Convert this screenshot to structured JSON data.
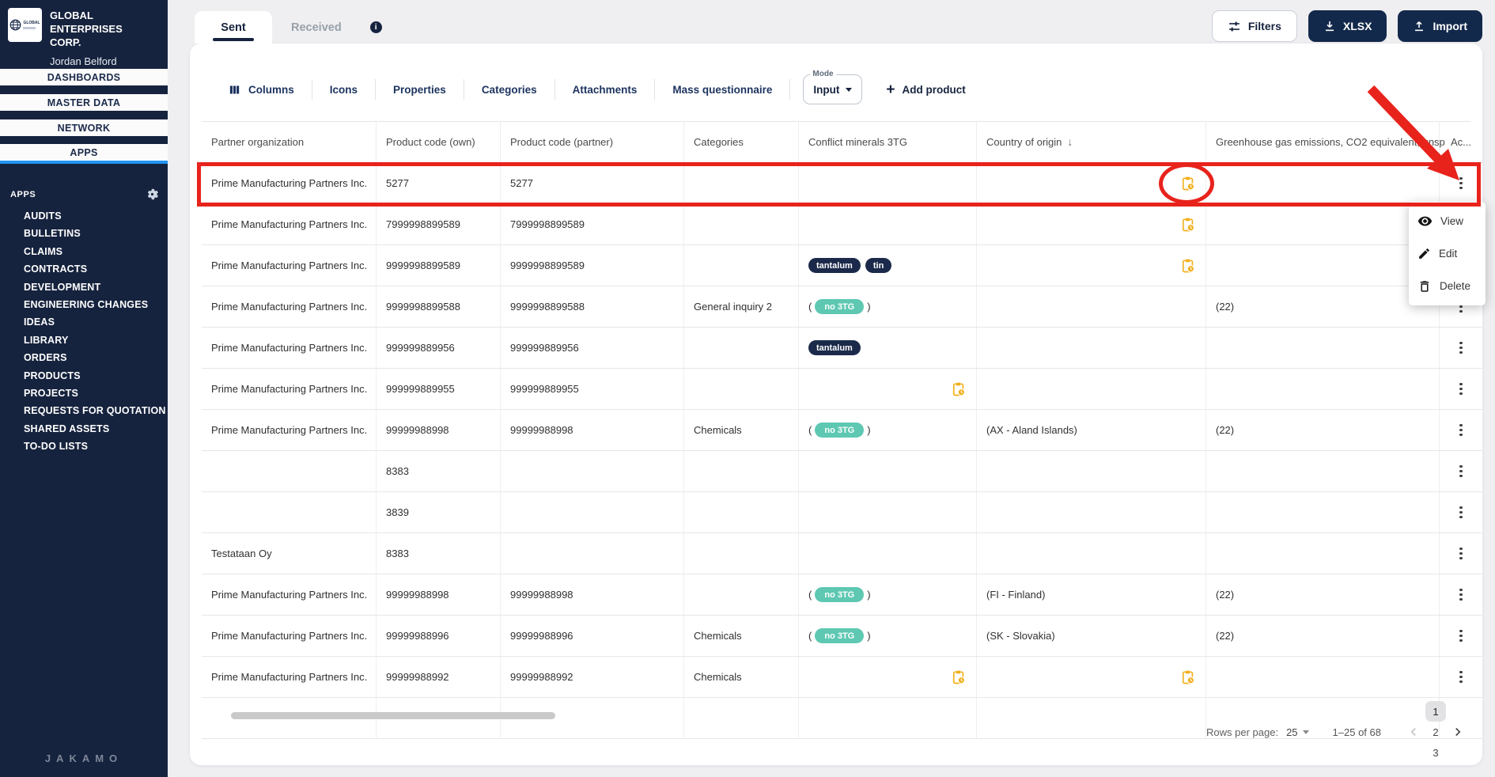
{
  "colors": {
    "sidebar_navy": "#16233e",
    "button_navy": "#13294b",
    "badge_navy": "#1b2a4a",
    "badge_teal": "#5ec8b2",
    "pending_amber": "#f2b01e",
    "annotation_red": "#e8231c",
    "active_tab_underline": "#2196f3"
  },
  "sidebar": {
    "logo_text": "GLOBAL",
    "company_line1": "GLOBAL ENTERPRISES",
    "company_line2": "CORP.",
    "user": "Jordan Belford",
    "nav_items": [
      {
        "label": "DASHBOARDS",
        "active": false
      },
      {
        "label": "MASTER DATA",
        "active": false
      },
      {
        "label": "NETWORK",
        "active": false
      },
      {
        "label": "APPS",
        "active": true
      }
    ],
    "apps_header": "APPS",
    "apps": [
      "AUDITS",
      "BULLETINS",
      "CLAIMS",
      "CONTRACTS",
      "DEVELOPMENT",
      "ENGINEERING CHANGES",
      "IDEAS",
      "LIBRARY",
      "ORDERS",
      "PRODUCTS",
      "PROJECTS",
      "REQUESTS FOR QUOTATION",
      "SHARED ASSETS",
      "TO-DO LISTS"
    ],
    "brand": "JAKAMO"
  },
  "tabs": {
    "sent": "Sent",
    "received": "Received"
  },
  "top_actions": {
    "filters": "Filters",
    "xlsx": "XLSX",
    "import": "Import"
  },
  "toolbar": {
    "items": [
      {
        "label": "Columns",
        "icon": "columns-icon"
      },
      {
        "label": "Icons"
      },
      {
        "label": "Properties"
      },
      {
        "label": "Categories"
      },
      {
        "label": "Attachments"
      },
      {
        "label": "Mass questionnaire"
      }
    ],
    "mode_label": "Mode",
    "mode_value": "Input",
    "add_product": "Add product"
  },
  "table": {
    "headers": [
      {
        "label": "Partner organization"
      },
      {
        "label": "Product code (own)"
      },
      {
        "label": "Product code (partner)"
      },
      {
        "label": "Categories"
      },
      {
        "label": "Conflict minerals 3TG"
      },
      {
        "label": "Country of origin",
        "sort": "desc"
      },
      {
        "label": "Greenhouse gas emissions, CO2 equivalent, unsp"
      },
      {
        "label": "Ac..."
      }
    ],
    "rows": [
      {
        "org": "Prime Manufacturing Partners Inc.",
        "own": "5277",
        "partner": "5277",
        "cat": "",
        "minerals": {
          "type": "none"
        },
        "country": "",
        "country_icon": true,
        "ghg": ""
      },
      {
        "org": "Prime Manufacturing Partners Inc.",
        "own": "7999998899589",
        "partner": "7999998899589",
        "cat": "",
        "minerals": {
          "type": "none"
        },
        "country": "",
        "country_icon": true,
        "ghg": ""
      },
      {
        "org": "Prime Manufacturing Partners Inc.",
        "own": "9999998899589",
        "partner": "9999998899589",
        "cat": "",
        "minerals": {
          "type": "badges",
          "badges": [
            "tantalum",
            "tin"
          ]
        },
        "country": "",
        "country_icon": true,
        "ghg": ""
      },
      {
        "org": "Prime Manufacturing Partners Inc.",
        "own": "9999998899588",
        "partner": "9999998899588",
        "cat": "General inquiry 2",
        "minerals": {
          "type": "no3tg",
          "label": "no 3TG"
        },
        "country": "",
        "country_icon": false,
        "ghg": "(22)"
      },
      {
        "org": "Prime Manufacturing Partners Inc.",
        "own": "999999889956",
        "partner": "999999889956",
        "cat": "",
        "minerals": {
          "type": "badges",
          "badges": [
            "tantalum"
          ]
        },
        "country": "",
        "country_icon": false,
        "ghg": ""
      },
      {
        "org": "Prime Manufacturing Partners Inc.",
        "own": "999999889955",
        "partner": "999999889955",
        "cat": "",
        "minerals": {
          "type": "icon"
        },
        "country": "",
        "country_icon": false,
        "ghg": ""
      },
      {
        "org": "Prime Manufacturing Partners Inc.",
        "own": "99999988998",
        "partner": "99999988998",
        "cat": "Chemicals",
        "minerals": {
          "type": "no3tg",
          "label": "no 3TG"
        },
        "country": "(AX - Aland Islands)",
        "country_icon": false,
        "ghg": "(22)"
      },
      {
        "org": "",
        "own": "8383",
        "partner": "",
        "cat": "",
        "minerals": {
          "type": "none"
        },
        "country": "",
        "country_icon": false,
        "ghg": ""
      },
      {
        "org": "",
        "own": "3839",
        "partner": "",
        "cat": "",
        "minerals": {
          "type": "none"
        },
        "country": "",
        "country_icon": false,
        "ghg": ""
      },
      {
        "org": "Testataan Oy",
        "own": "8383",
        "partner": "",
        "cat": "",
        "minerals": {
          "type": "none"
        },
        "country": "",
        "country_icon": false,
        "ghg": ""
      },
      {
        "org": "Prime Manufacturing Partners Inc.",
        "own": "99999988998",
        "partner": "99999988998",
        "cat": "",
        "minerals": {
          "type": "no3tg",
          "label": "no 3TG"
        },
        "country": "(FI - Finland)",
        "country_icon": false,
        "ghg": "(22)"
      },
      {
        "org": "Prime Manufacturing Partners Inc.",
        "own": "99999988996",
        "partner": "99999988996",
        "cat": "Chemicals",
        "minerals": {
          "type": "no3tg",
          "label": "no 3TG"
        },
        "country": "(SK - Slovakia)",
        "country_icon": false,
        "ghg": "(22)"
      },
      {
        "org": "Prime Manufacturing Partners Inc.",
        "own": "99999988992",
        "partner": "99999988992",
        "cat": "Chemicals",
        "minerals": {
          "type": "icon"
        },
        "country": "",
        "country_icon": true,
        "ghg": ""
      }
    ]
  },
  "context_menu": {
    "items": [
      {
        "label": "View",
        "icon": "eye-icon"
      },
      {
        "label": "Edit",
        "icon": "pencil-icon"
      },
      {
        "label": "Delete",
        "icon": "trash-icon"
      }
    ]
  },
  "pagination": {
    "rows_per_page_label": "Rows per page:",
    "rows_per_page_value": "25",
    "range": "1–25 of 68",
    "pages": [
      "1",
      "2",
      "3"
    ],
    "active_page": "1"
  }
}
